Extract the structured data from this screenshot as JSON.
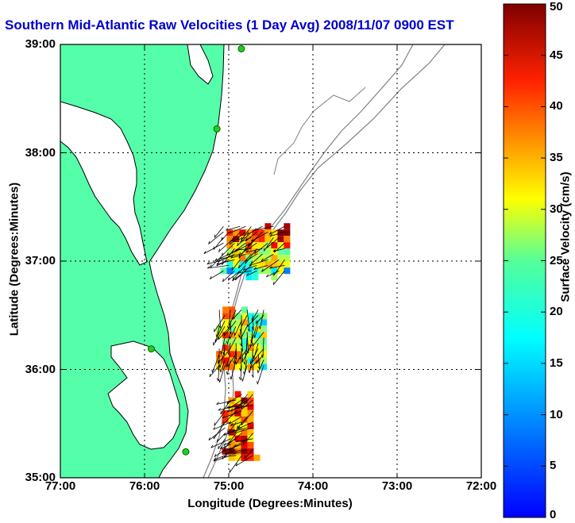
{
  "title": "Southern Mid-Atlantic Raw Velocities (1 Day Avg) 2008/11/07 0900 EST",
  "axes": {
    "xlabel": "Longitude (Degrees:Minutes)",
    "ylabel": "Latitude (Degrees:Minutes)",
    "x_ticks": [
      "77:00",
      "76:00",
      "75:00",
      "74:00",
      "73:00",
      "72:00"
    ],
    "y_ticks": [
      "39:00",
      "38:00",
      "37:00",
      "36:00",
      "35:00"
    ],
    "xlim": [
      -77,
      -72
    ],
    "ylim": [
      35,
      39
    ]
  },
  "colorbar": {
    "label": "Surface Velocity (cm/s)",
    "ticks": [
      "0",
      "5",
      "10",
      "15",
      "20",
      "25",
      "30",
      "35",
      "40",
      "45",
      "50"
    ],
    "range": [
      0,
      50
    ],
    "colormap": "jet"
  },
  "colors": {
    "land": "#55ffaa",
    "water": "#ffffff",
    "coastline": "#000000",
    "bathymetry": "#808080",
    "grid": "#000000",
    "title": "#0000cc",
    "station": "#22cc22"
  },
  "stations": [
    {
      "lon": -74.85,
      "lat": 38.96
    },
    {
      "lon": -75.14,
      "lat": 38.22
    },
    {
      "lon": -75.92,
      "lat": 36.19
    },
    {
      "lon": -75.51,
      "lat": 35.24
    }
  ],
  "velocity_clusters": [
    {
      "lon_range": [
        -75.1,
        -74.3
      ],
      "lat_range": [
        36.88,
        37.35
      ],
      "speed": 32
    },
    {
      "lon_range": [
        -75.15,
        -74.55
      ],
      "lat_range": [
        36.02,
        36.58
      ],
      "speed": 30
    },
    {
      "lon_range": [
        -75.08,
        -74.7
      ],
      "lat_range": [
        35.18,
        35.8
      ],
      "speed": 40
    }
  ]
}
